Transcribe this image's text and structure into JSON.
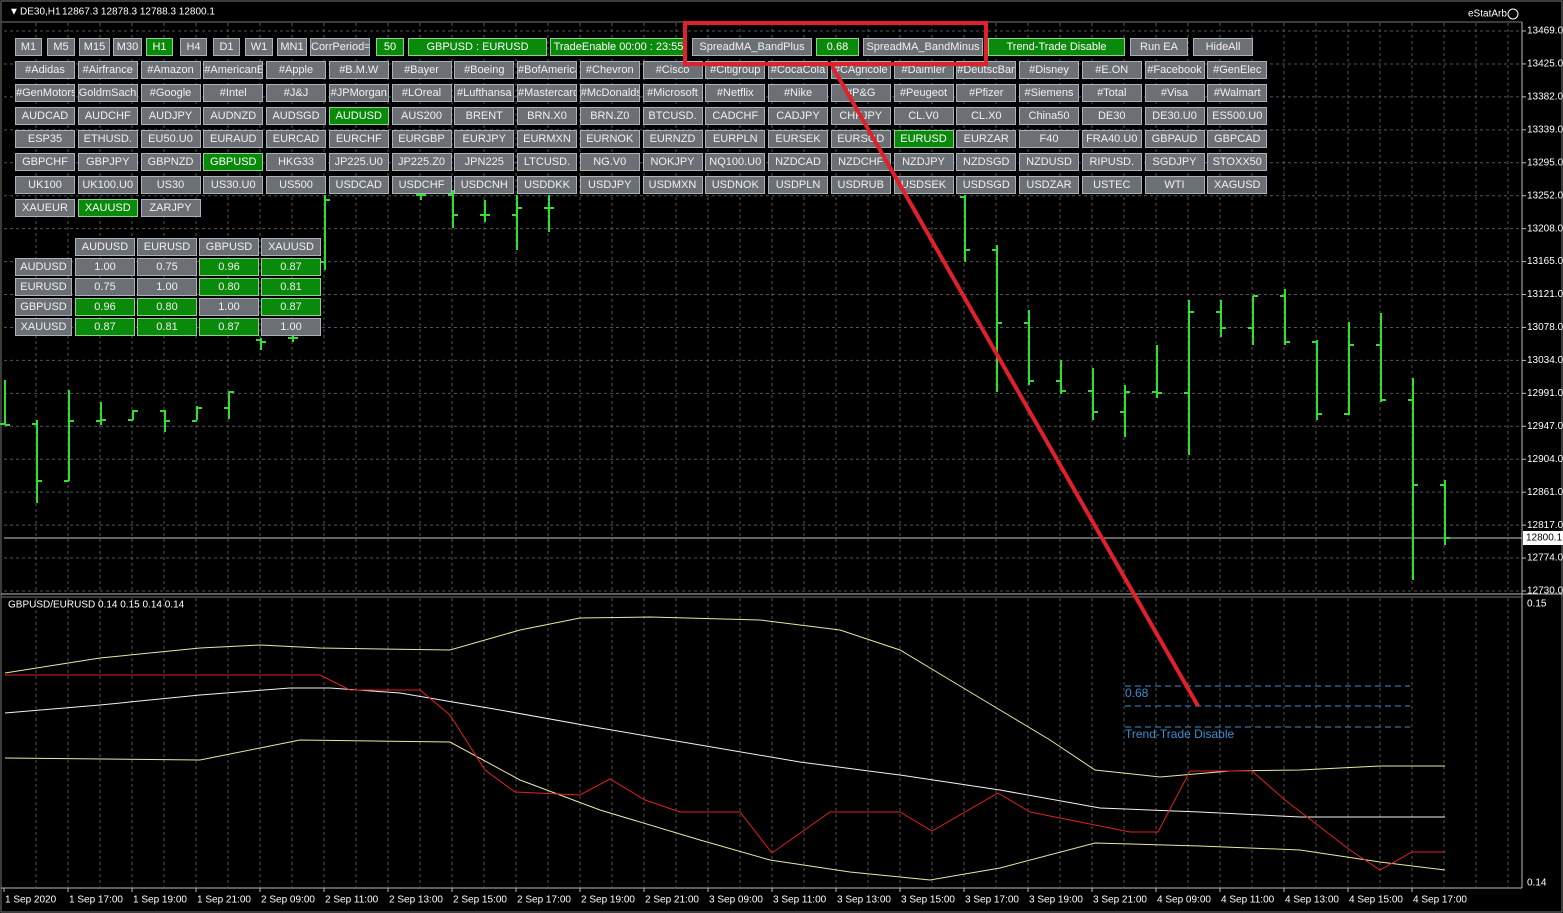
{
  "header": {
    "symbol": "DE30,H1",
    "ohlc": "12867.3 12878.3 12788.3 12800.1",
    "brand": "eStatArb"
  },
  "toolbar": [
    {
      "label": "M1",
      "active": false
    },
    {
      "label": "M5",
      "active": false
    },
    {
      "label": "M15",
      "active": false
    },
    {
      "label": "M30",
      "active": false
    },
    {
      "label": "H1",
      "active": true
    },
    {
      "label": "H4",
      "active": false
    },
    {
      "label": "D1",
      "active": false
    },
    {
      "label": "W1",
      "active": false
    },
    {
      "label": "MN1",
      "active": false
    },
    {
      "label": "CorrPeriod=",
      "active": false
    },
    {
      "label": "50",
      "active": true
    },
    {
      "label": "GBPUSD : EURUSD",
      "active": true
    },
    {
      "label": "TradeEnable 00:00 : 23:55",
      "active": true
    },
    {
      "label": "SpreadMA_BandPlus",
      "active": false
    },
    {
      "label": "0.68",
      "active": true
    },
    {
      "label": "SpreadMA_BandMinus",
      "active": false
    },
    {
      "label": "Trend-Trade Disable",
      "active": true
    },
    {
      "label": "Run EA",
      "active": false
    },
    {
      "label": "HideAll",
      "active": false
    }
  ],
  "symbols": [
    [
      {
        "label": "#Adidas",
        "active": false
      },
      {
        "label": "#Airfrance",
        "active": false
      },
      {
        "label": "#Amazon",
        "active": false
      },
      {
        "label": "#AmericanEx",
        "active": false
      },
      {
        "label": "#Apple",
        "active": false
      },
      {
        "label": "#B.M.W",
        "active": false
      },
      {
        "label": "#Bayer",
        "active": false
      },
      {
        "label": "#Boeing",
        "active": false
      },
      {
        "label": "#BofAmerica",
        "active": false
      },
      {
        "label": "#Chevron",
        "active": false
      },
      {
        "label": "#Cisco",
        "active": false
      },
      {
        "label": "#Citigroup",
        "active": false
      },
      {
        "label": "#CocaCola",
        "active": false
      },
      {
        "label": "#CAgricole",
        "active": false
      },
      {
        "label": "#Daimler",
        "active": false
      },
      {
        "label": "#DeutscBank",
        "active": false
      },
      {
        "label": "#Disney",
        "active": false
      },
      {
        "label": "#E.ON",
        "active": false
      },
      {
        "label": "#Facebook",
        "active": false
      },
      {
        "label": "#GenElec",
        "active": false
      }
    ],
    [
      {
        "label": "#GenMotors",
        "active": false
      },
      {
        "label": "GoldmSachs",
        "active": false
      },
      {
        "label": "#Google",
        "active": false
      },
      {
        "label": "#Intel",
        "active": false
      },
      {
        "label": "#J&J",
        "active": false
      },
      {
        "label": "#JPMorgan",
        "active": false
      },
      {
        "label": "#LOreal",
        "active": false
      },
      {
        "label": "#Lufthansa",
        "active": false
      },
      {
        "label": "#Mastercard",
        "active": false
      },
      {
        "label": "#McDonalds",
        "active": false
      },
      {
        "label": "#Microsoft",
        "active": false
      },
      {
        "label": "#Netflix",
        "active": false
      },
      {
        "label": "#Nike",
        "active": false
      },
      {
        "label": "#P&G",
        "active": false
      },
      {
        "label": "#Peugeot",
        "active": false
      },
      {
        "label": "#Pfizer",
        "active": false
      },
      {
        "label": "#Siemens",
        "active": false
      },
      {
        "label": "#Total",
        "active": false
      },
      {
        "label": "#Visa",
        "active": false
      },
      {
        "label": "#Walmart",
        "active": false
      }
    ],
    [
      {
        "label": "AUDCAD",
        "active": false
      },
      {
        "label": "AUDCHF",
        "active": false
      },
      {
        "label": "AUDJPY",
        "active": false
      },
      {
        "label": "AUDNZD",
        "active": false
      },
      {
        "label": "AUDSGD",
        "active": false
      },
      {
        "label": "AUDUSD",
        "active": true
      },
      {
        "label": "AUS200",
        "active": false
      },
      {
        "label": "BRENT",
        "active": false
      },
      {
        "label": "BRN.X0",
        "active": false
      },
      {
        "label": "BRN.Z0",
        "active": false
      },
      {
        "label": "BTCUSD.",
        "active": false
      },
      {
        "label": "CADCHF",
        "active": false
      },
      {
        "label": "CADJPY",
        "active": false
      },
      {
        "label": "CHFJPY",
        "active": false
      },
      {
        "label": "CL.V0",
        "active": false
      },
      {
        "label": "CL.X0",
        "active": false
      },
      {
        "label": "China50",
        "active": false
      },
      {
        "label": "DE30",
        "active": false
      },
      {
        "label": "DE30.U0",
        "active": false
      },
      {
        "label": "ES500.U0",
        "active": false
      }
    ],
    [
      {
        "label": "ESP35",
        "active": false
      },
      {
        "label": "ETHUSD.",
        "active": false
      },
      {
        "label": "EU50.U0",
        "active": false
      },
      {
        "label": "EURAUD",
        "active": false
      },
      {
        "label": "EURCAD",
        "active": false
      },
      {
        "label": "EURCHF",
        "active": false
      },
      {
        "label": "EURGBP",
        "active": false
      },
      {
        "label": "EURJPY",
        "active": false
      },
      {
        "label": "EURMXN",
        "active": false
      },
      {
        "label": "EURNOK",
        "active": false
      },
      {
        "label": "EURNZD",
        "active": false
      },
      {
        "label": "EURPLN",
        "active": false
      },
      {
        "label": "EURSEK",
        "active": false
      },
      {
        "label": "EURSGD",
        "active": false
      },
      {
        "label": "EURUSD",
        "active": true
      },
      {
        "label": "EURZAR",
        "active": false
      },
      {
        "label": "F40",
        "active": false
      },
      {
        "label": "FRA40.U0",
        "active": false
      },
      {
        "label": "GBPAUD",
        "active": false
      },
      {
        "label": "GBPCAD",
        "active": false
      }
    ],
    [
      {
        "label": "GBPCHF",
        "active": false
      },
      {
        "label": "GBPJPY",
        "active": false
      },
      {
        "label": "GBPNZD",
        "active": false
      },
      {
        "label": "GBPUSD",
        "active": true
      },
      {
        "label": "HKG33",
        "active": false
      },
      {
        "label": "JP225.U0",
        "active": false
      },
      {
        "label": "JP225.Z0",
        "active": false
      },
      {
        "label": "JPN225",
        "active": false
      },
      {
        "label": "LTCUSD.",
        "active": false
      },
      {
        "label": "NG.V0",
        "active": false
      },
      {
        "label": "NOKJPY",
        "active": false
      },
      {
        "label": "NQ100.U0",
        "active": false
      },
      {
        "label": "NZDCAD",
        "active": false
      },
      {
        "label": "NZDCHF",
        "active": false
      },
      {
        "label": "NZDJPY",
        "active": false
      },
      {
        "label": "NZDSGD",
        "active": false
      },
      {
        "label": "NZDUSD",
        "active": false
      },
      {
        "label": "RIPUSD.",
        "active": false
      },
      {
        "label": "SGDJPY",
        "active": false
      },
      {
        "label": "STOXX50",
        "active": false
      }
    ],
    [
      {
        "label": "UK100",
        "active": false
      },
      {
        "label": "UK100.U0",
        "active": false
      },
      {
        "label": "US30",
        "active": false
      },
      {
        "label": "US30.U0",
        "active": false
      },
      {
        "label": "US500",
        "active": false
      },
      {
        "label": "USDCAD",
        "active": false
      },
      {
        "label": "USDCHF",
        "active": false
      },
      {
        "label": "USDCNH",
        "active": false
      },
      {
        "label": "USDDKK",
        "active": false
      },
      {
        "label": "USDJPY",
        "active": false
      },
      {
        "label": "USDMXN",
        "active": false
      },
      {
        "label": "USDNOK",
        "active": false
      },
      {
        "label": "USDPLN",
        "active": false
      },
      {
        "label": "USDRUB",
        "active": false
      },
      {
        "label": "USDSEK",
        "active": false
      },
      {
        "label": "USDSGD",
        "active": false
      },
      {
        "label": "USDZAR",
        "active": false
      },
      {
        "label": "USTEC",
        "active": false
      },
      {
        "label": "WTI",
        "active": false
      },
      {
        "label": "XAGUSD",
        "active": false
      }
    ],
    [
      {
        "label": "XAUEUR",
        "active": false
      },
      {
        "label": "XAUUSD",
        "active": true
      },
      {
        "label": "ZARJPY",
        "active": false
      }
    ]
  ],
  "correlation": {
    "columns": [
      "AUDUSD",
      "EURUSD",
      "GBPUSD",
      "XAUUSD"
    ],
    "rows": [
      {
        "label": "AUDUSD",
        "cells": [
          {
            "text": "1.00",
            "active": false
          },
          {
            "text": "0.75",
            "active": false
          },
          {
            "text": "0.96",
            "active": true
          },
          {
            "text": "0.87",
            "active": true
          }
        ]
      },
      {
        "label": "EURUSD",
        "cells": [
          {
            "text": "0.75",
            "active": false
          },
          {
            "text": "1.00",
            "active": false
          },
          {
            "text": "0.80",
            "active": true
          },
          {
            "text": "0.81",
            "active": true
          }
        ]
      },
      {
        "label": "GBPUSD",
        "cells": [
          {
            "text": "0.96",
            "active": true
          },
          {
            "text": "0.80",
            "active": true
          },
          {
            "text": "1.00",
            "active": false
          },
          {
            "text": "0.87",
            "active": true
          }
        ]
      },
      {
        "label": "XAUUSD",
        "cells": [
          {
            "text": "0.87",
            "active": true
          },
          {
            "text": "0.81",
            "active": true
          },
          {
            "text": "0.87",
            "active": true
          },
          {
            "text": "1.00",
            "active": false
          }
        ]
      }
    ]
  },
  "price_axis": [
    "13469.0",
    "13425.0",
    "13382.0",
    "13339.0",
    "13295.0",
    "13252.0",
    "13208.0",
    "13165.0",
    "13121.0",
    "13078.0",
    "13034.0",
    "12991.0",
    "12947.0",
    "12904.0",
    "12861.0",
    "12817.0",
    "12774.0",
    "12730.0"
  ],
  "current_price": "12800.1",
  "indicator": {
    "title": "GBPUSD/EURUSD 0.14 0.15 0.14 0.14",
    "axis_top": "0.15",
    "axis_bottom": "0.14",
    "labels": [
      "0.68",
      "Trend-Trade Disable"
    ]
  },
  "time_axis": [
    "1 Sep 2020",
    "1 Sep 17:00",
    "1 Sep 19:00",
    "1 Sep 21:00",
    "2 Sep 09:00",
    "2 Sep 11:00",
    "2 Sep 13:00",
    "2 Sep 15:00",
    "2 Sep 17:00",
    "2 Sep 19:00",
    "2 Sep 21:00",
    "3 Sep 09:00",
    "3 Sep 11:00",
    "3 Sep 13:00",
    "3 Sep 15:00",
    "3 Sep 17:00",
    "3 Sep 19:00",
    "3 Sep 21:00",
    "4 Sep 09:00",
    "4 Sep 11:00",
    "4 Sep 13:00",
    "4 Sep 15:00",
    "4 Sep 17:00"
  ]
}
